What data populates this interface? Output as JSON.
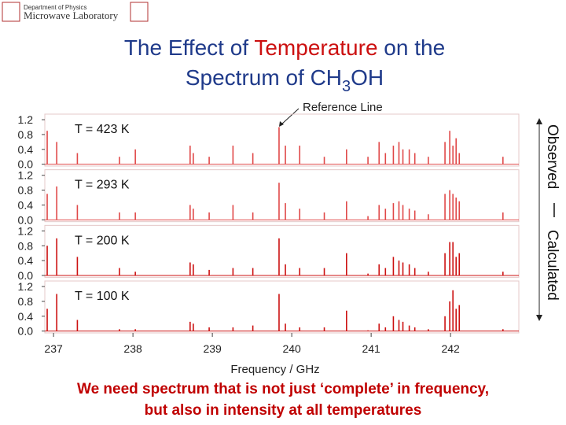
{
  "header": {
    "line1": "Department of Physics",
    "line2": "Microwave Laboratory"
  },
  "title": {
    "line1": [
      "The Effect of ",
      "Temperature",
      " on the"
    ],
    "line2": [
      "Spectrum of CH",
      "3",
      "OH"
    ]
  },
  "footer": [
    "We need spectrum that is not just ‘complete’ in frequency,",
    "but also in intensity at all temperatures"
  ],
  "chart_data": {
    "type": "stem",
    "annotation": "Reference Line",
    "side_labels": [
      "Observed",
      "Calculated"
    ],
    "xlabel": "Frequency / GHz",
    "xlim": [
      236.89,
      242.86
    ],
    "xticks": [
      237,
      238,
      239,
      240,
      241,
      242
    ],
    "ylim": [
      -0.05,
      1.35
    ],
    "yticks": [
      {
        "value": 0,
        "label": "0.0"
      },
      0.4,
      0.8,
      1.2
    ],
    "x": [
      236.92,
      237.04,
      237.3,
      237.83,
      238.03,
      238.72,
      238.76,
      238.96,
      239.26,
      239.51,
      239.84,
      239.92,
      240.1,
      240.41,
      240.69,
      240.96,
      241.1,
      241.18,
      241.28,
      241.35,
      241.4,
      241.48,
      241.55,
      241.72,
      241.93,
      241.99,
      242.03,
      242.07,
      242.11,
      242.66
    ],
    "series": [
      {
        "name": "T = 423 K",
        "color": "#e04848",
        "values": [
          0.9,
          0.6,
          0.3,
          0.2,
          0.4,
          0.5,
          0.3,
          0.2,
          0.5,
          0.3,
          1.0,
          0.5,
          0.5,
          0.2,
          0.4,
          0.2,
          0.6,
          0.3,
          0.5,
          0.6,
          0.4,
          0.4,
          0.3,
          0.2,
          0.6,
          0.9,
          0.5,
          0.7,
          0.3,
          0.2
        ]
      },
      {
        "name": "T = 293 K",
        "color": "#e04848",
        "values": [
          0.7,
          0.9,
          0.4,
          0.2,
          0.2,
          0.4,
          0.3,
          0.2,
          0.4,
          0.2,
          1.0,
          0.45,
          0.3,
          0.2,
          0.5,
          0.1,
          0.4,
          0.3,
          0.45,
          0.5,
          0.4,
          0.3,
          0.25,
          0.15,
          0.7,
          0.8,
          0.7,
          0.6,
          0.5,
          0.2
        ]
      },
      {
        "name": "T = 200 K",
        "color": "#cc1010",
        "values": [
          0.8,
          1.0,
          0.5,
          0.2,
          0.1,
          0.35,
          0.3,
          0.15,
          0.2,
          0.2,
          1.0,
          0.3,
          0.2,
          0.2,
          0.6,
          0.05,
          0.3,
          0.2,
          0.5,
          0.4,
          0.35,
          0.3,
          0.2,
          0.1,
          0.6,
          0.9,
          0.9,
          0.5,
          0.6,
          0.1
        ]
      },
      {
        "name": "T = 100 K",
        "color": "#cc1010",
        "values": [
          0.6,
          1.0,
          0.3,
          0.05,
          0.05,
          0.25,
          0.2,
          0.1,
          0.1,
          0.15,
          1.0,
          0.2,
          0.1,
          0.1,
          0.55,
          0.02,
          0.2,
          0.1,
          0.4,
          0.3,
          0.25,
          0.15,
          0.1,
          0.05,
          0.4,
          0.8,
          1.1,
          0.6,
          0.7,
          0.05
        ]
      }
    ]
  }
}
